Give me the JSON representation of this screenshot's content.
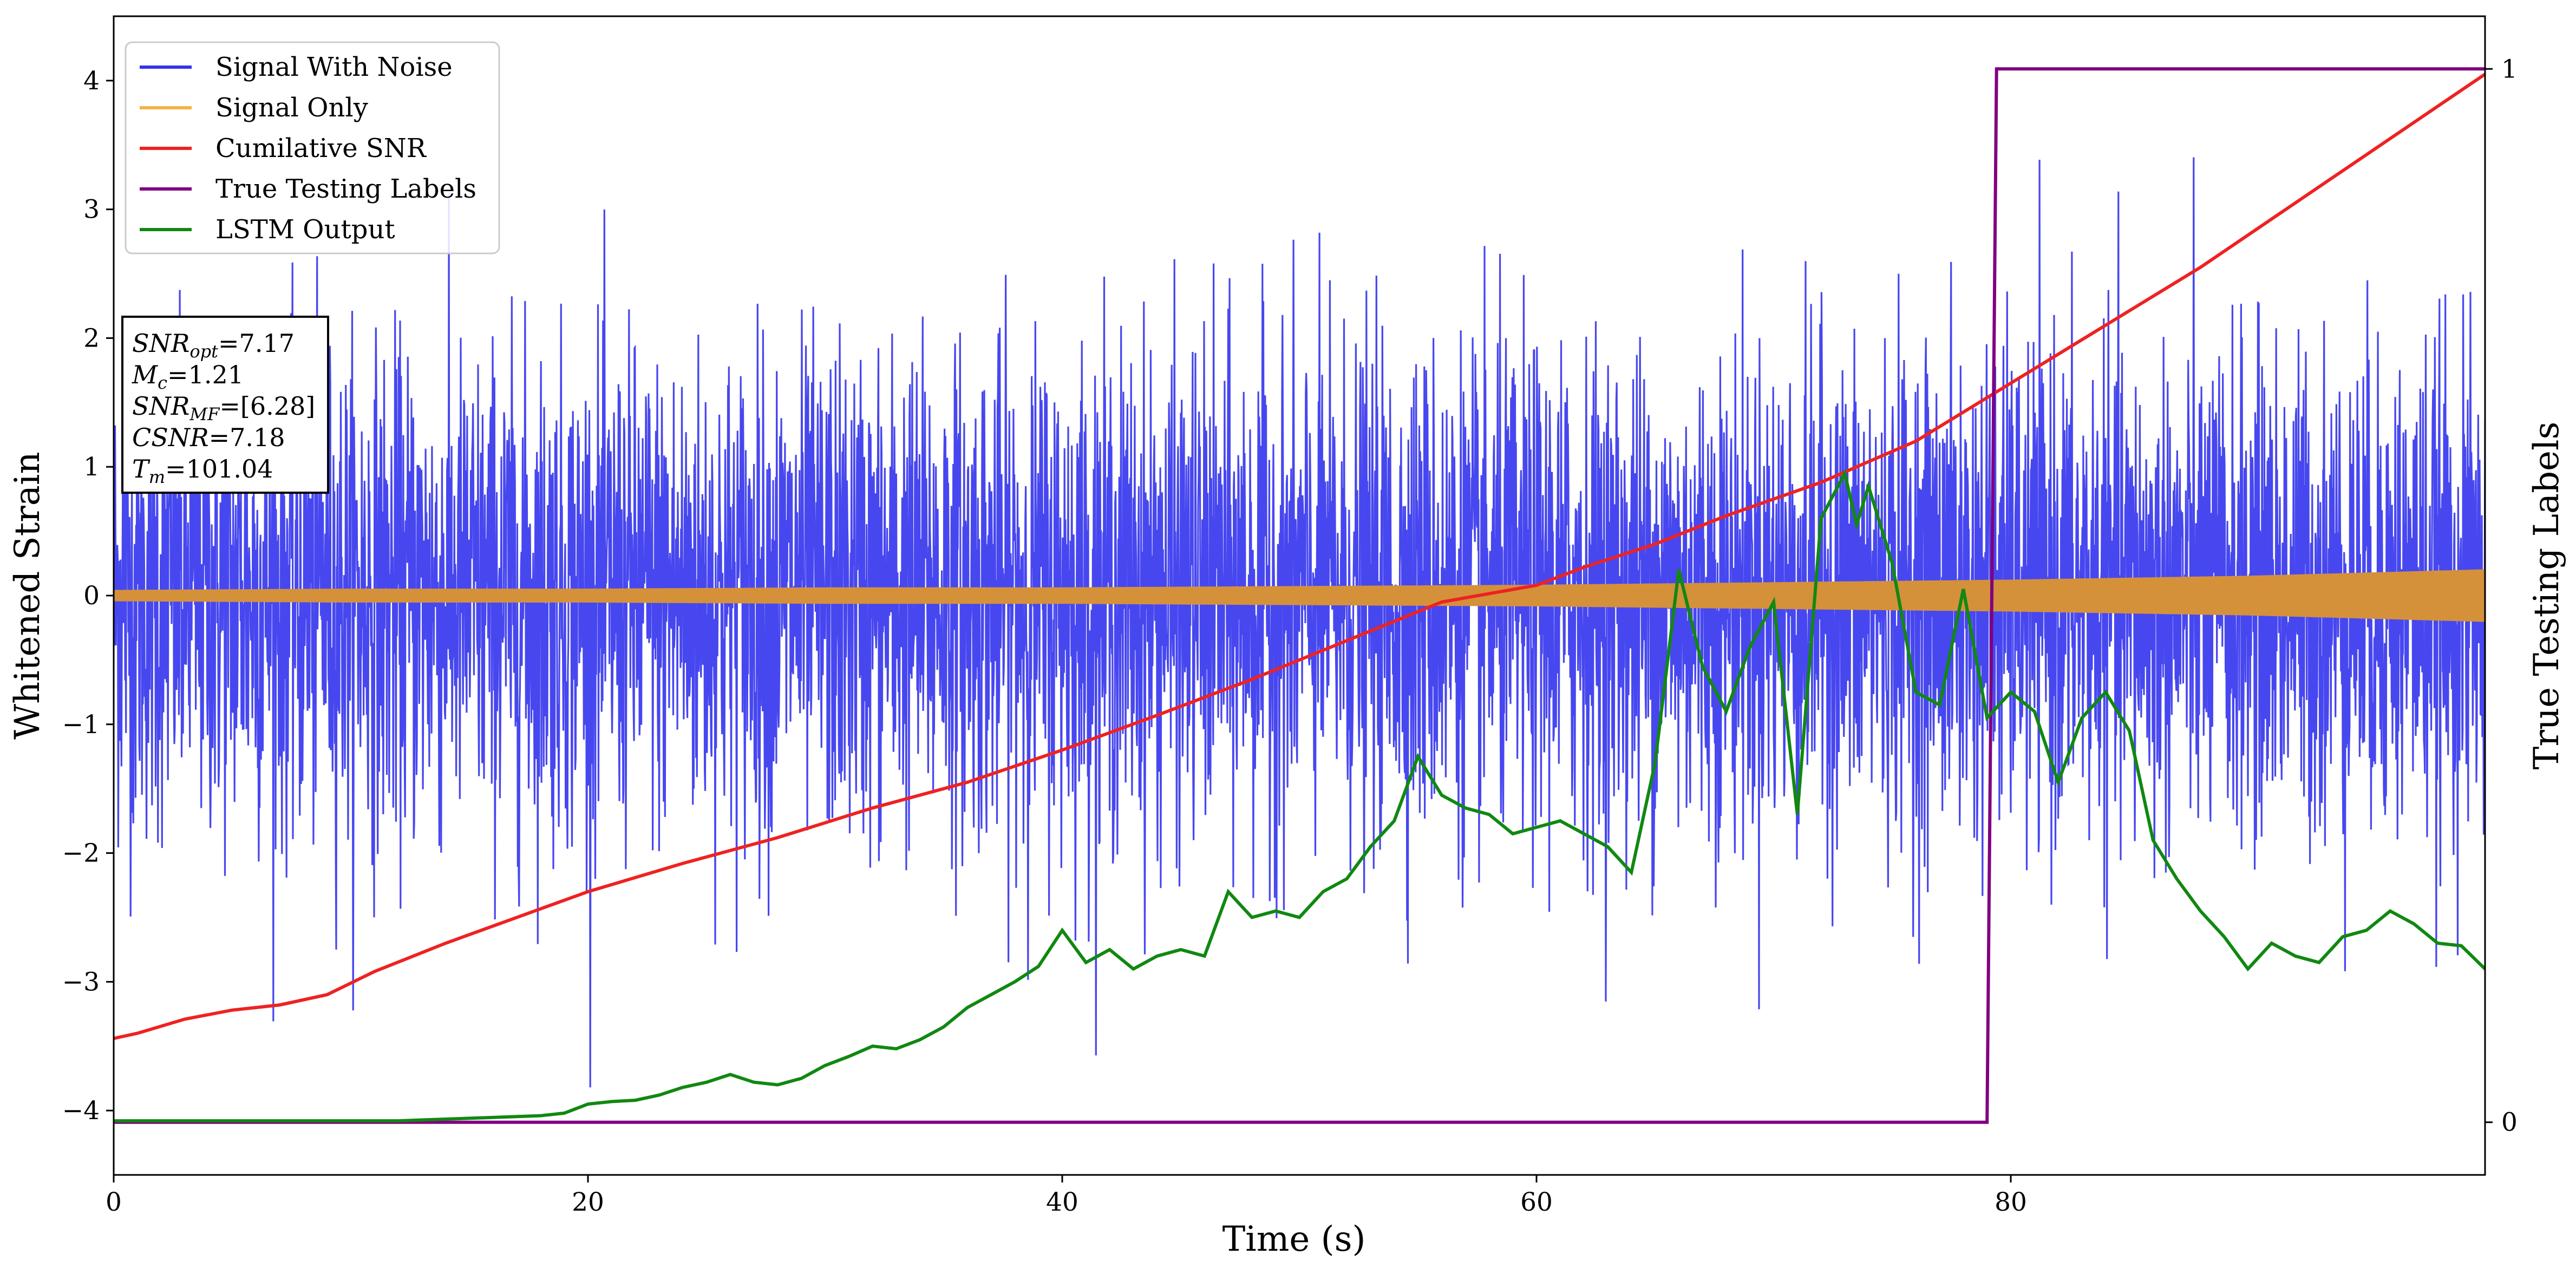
{
  "chart_data": {
    "type": "line",
    "title": "",
    "xlabel": "Time (s)",
    "ylabel": "Whitened Strain",
    "y2label": "True Testing Labels",
    "xlim": [
      0,
      100
    ],
    "ylim": [
      -4.5,
      4.5
    ],
    "y2lim": [
      -0.05,
      1.05
    ],
    "x_ticks": [
      0,
      20,
      40,
      60,
      80
    ],
    "y_ticks": [
      -4,
      -3,
      -2,
      -1,
      0,
      1,
      2,
      3,
      4
    ],
    "y2_ticks": [
      0,
      1
    ],
    "grid": false,
    "legend_position": "top-left",
    "legend": [
      {
        "label": "Signal With Noise",
        "color": "#3333ee"
      },
      {
        "label": "Signal Only",
        "color": "#f5b342"
      },
      {
        "label": "Cumilative SNR",
        "color": "#ee2222"
      },
      {
        "label": "True Testing Labels",
        "color": "#800080"
      },
      {
        "label": "LSTM Output",
        "color": "#118811"
      }
    ],
    "annotation": [
      {
        "sym": "SNR",
        "sub": "opt",
        "val": "=7.17"
      },
      {
        "sym": "M",
        "sub": "c",
        "val": "=1.21"
      },
      {
        "sym": "SNR",
        "sub": "MF",
        "val": "=[6.28]"
      },
      {
        "sym": "CSNR",
        "sub": "",
        "val": "=7.18"
      },
      {
        "sym": "T",
        "sub": "m",
        "val": "=101.04"
      }
    ],
    "series": [
      {
        "name": "Signal With Noise",
        "axis": "left",
        "color": "#3333ee",
        "description_of_values": "dense noise, approx. uniform std 0.9, extremes near +4 and -4.1",
        "x_range": [
          0,
          100
        ],
        "noise_band": [
          -2.7,
          2.7
        ]
      },
      {
        "name": "Signal Only",
        "axis": "left",
        "color": "#d4913a",
        "x": [
          0,
          10,
          20,
          30,
          40,
          50,
          60,
          70,
          80,
          90,
          100
        ],
        "amplitude": [
          0.04,
          0.05,
          0.05,
          0.06,
          0.06,
          0.07,
          0.08,
          0.1,
          0.12,
          0.15,
          0.2
        ]
      },
      {
        "name": "Cumilative SNR",
        "axis": "left",
        "color": "#ee2222",
        "x": [
          0,
          1,
          3,
          5,
          7,
          9,
          11,
          14,
          17,
          20,
          24,
          28,
          32,
          36,
          40,
          44,
          48,
          52,
          56,
          60,
          62,
          65,
          68,
          72,
          76,
          80,
          84,
          88,
          92,
          96,
          100
        ],
        "values": [
          -3.44,
          -3.4,
          -3.29,
          -3.22,
          -3.18,
          -3.1,
          -2.92,
          -2.7,
          -2.5,
          -2.3,
          -2.08,
          -1.88,
          -1.65,
          -1.45,
          -1.2,
          -0.93,
          -0.65,
          -0.35,
          -0.05,
          0.08,
          0.22,
          0.4,
          0.62,
          0.88,
          1.2,
          1.65,
          2.1,
          2.55,
          3.05,
          3.55,
          4.05
        ]
      },
      {
        "name": "True Testing Labels",
        "axis": "right",
        "color": "#800080",
        "x": [
          0,
          79.0,
          79.4,
          100
        ],
        "values": [
          0,
          0,
          1,
          1
        ]
      },
      {
        "name": "LSTM Output",
        "axis": "left",
        "color": "#118811",
        "x": [
          0,
          12,
          15,
          18,
          19,
          20,
          21,
          22,
          23,
          24,
          25,
          26,
          27,
          28,
          29,
          30,
          31,
          32,
          33,
          34,
          35,
          36,
          37,
          38,
          39,
          40,
          41,
          42,
          43,
          44,
          45,
          46,
          47,
          48,
          49,
          50,
          51,
          52,
          53,
          54,
          55,
          56,
          57,
          58,
          59,
          60,
          61,
          62,
          63,
          64,
          65,
          66,
          67,
          68,
          69,
          70,
          71,
          72,
          73,
          73.5,
          74,
          75,
          76,
          77,
          78,
          79,
          80,
          81,
          82,
          83,
          84,
          85,
          86,
          87,
          88,
          89,
          90,
          91,
          92,
          93,
          94,
          95,
          96,
          97,
          98,
          99,
          100
        ],
        "values": [
          -4.08,
          -4.08,
          -4.06,
          -4.04,
          -4.02,
          -3.95,
          -3.93,
          -3.92,
          -3.88,
          -3.82,
          -3.78,
          -3.72,
          -3.78,
          -3.8,
          -3.75,
          -3.65,
          -3.58,
          -3.5,
          -3.52,
          -3.45,
          -3.35,
          -3.2,
          -3.1,
          -3.0,
          -2.88,
          -2.6,
          -2.85,
          -2.75,
          -2.9,
          -2.8,
          -2.75,
          -2.8,
          -2.3,
          -2.5,
          -2.45,
          -2.5,
          -2.3,
          -2.2,
          -1.95,
          -1.75,
          -1.25,
          -1.55,
          -1.65,
          -1.7,
          -1.85,
          -1.8,
          -1.75,
          -1.85,
          -1.95,
          -2.15,
          -1.3,
          0.2,
          -0.55,
          -0.9,
          -0.4,
          -0.05,
          -1.7,
          0.6,
          0.95,
          0.55,
          0.85,
          0.25,
          -0.75,
          -0.85,
          0.05,
          -0.95,
          -0.75,
          -0.9,
          -1.45,
          -0.95,
          -0.75,
          -1.05,
          -1.9,
          -2.2,
          -2.45,
          -2.65,
          -2.9,
          -2.7,
          -2.8,
          -2.85,
          -2.65,
          -2.6,
          -2.45,
          -2.55,
          -2.7,
          -2.72,
          -2.9
        ]
      }
    ]
  }
}
